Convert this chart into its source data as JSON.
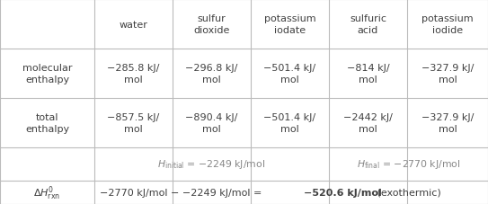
{
  "col_headers": [
    "",
    "water",
    "sulfur\ndioxide",
    "potassium\niodate",
    "sulfuric\nacid",
    "potassium\niodide"
  ],
  "row1_label": "molecular\nenthalpy",
  "row1_values": [
    "−285.8 kJ/\nmol",
    "−296.8 kJ/\nmol",
    "−501.4 kJ/\nmol",
    "−814 kJ/\nmol",
    "−327.9 kJ/\nmol"
  ],
  "row2_label": "total\nenthalpy",
  "row2_values": [
    "−857.5 kJ/\nmol",
    "−890.4 kJ/\nmol",
    "−501.4 kJ/\nmol",
    "−2442 kJ/\nmol",
    "−327.9 kJ/\nmol"
  ],
  "background_color": "#ffffff",
  "grid_color": "#bbbbbb",
  "text_color": "#404040",
  "fs_header": 8.0,
  "fs_cell": 8.0,
  "fs_math": 7.8,
  "fs_eq": 8.0
}
